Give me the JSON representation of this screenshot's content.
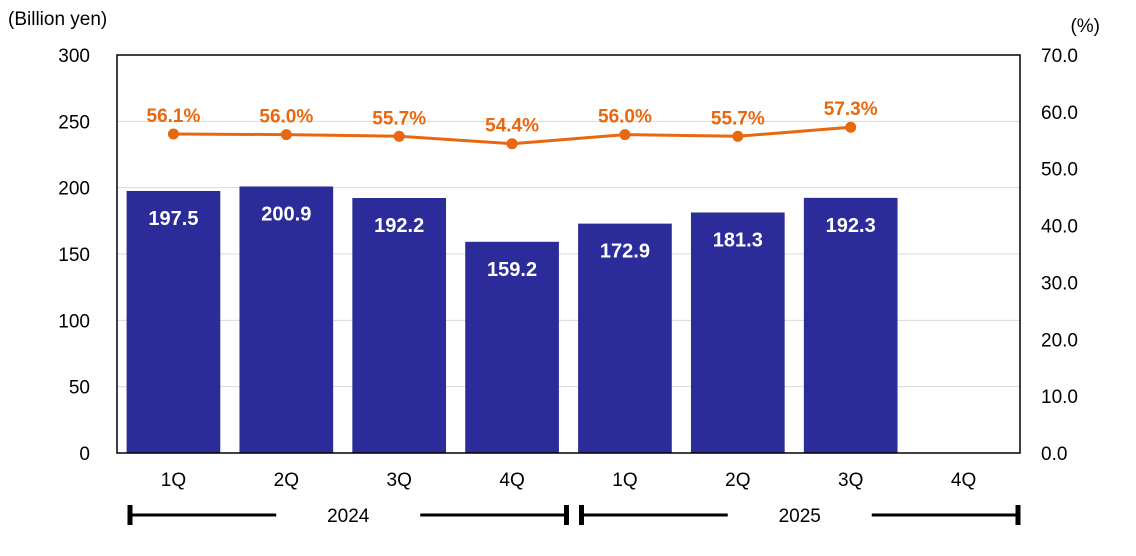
{
  "chart_data": {
    "type": "bar",
    "title": "",
    "ylabel": "(Billion yen)",
    "y2label": "(%)",
    "ylim": [
      0,
      300
    ],
    "y2lim": [
      0,
      70
    ],
    "yticks": [
      "0",
      "50",
      "100",
      "150",
      "200",
      "250",
      "300"
    ],
    "y2ticks": [
      "0.0",
      "10.0",
      "20.0",
      "30.0",
      "40.0",
      "50.0",
      "60.0",
      "70.0"
    ],
    "categories": [
      "1Q",
      "2Q",
      "3Q",
      "4Q",
      "1Q",
      "2Q",
      "3Q",
      "4Q"
    ],
    "groups": [
      {
        "label": "2024",
        "span": [
          0,
          3
        ]
      },
      {
        "label": "2025",
        "span": [
          4,
          7
        ]
      }
    ],
    "series": [
      {
        "kind": "bar",
        "axis": "left",
        "values": [
          197.5,
          200.9,
          192.2,
          159.2,
          172.9,
          181.3,
          192.3,
          null
        ],
        "labels": [
          "197.5",
          "200.9",
          "192.2",
          "159.2",
          "172.9",
          "181.3",
          "192.3",
          ""
        ]
      },
      {
        "kind": "line",
        "axis": "right",
        "values": [
          56.1,
          56.0,
          55.7,
          54.4,
          56.0,
          55.7,
          57.3,
          null
        ],
        "labels": [
          "56.1%",
          "56.0%",
          "55.7%",
          "54.4%",
          "56.0%",
          "55.7%",
          "57.3%",
          ""
        ]
      }
    ],
    "grid": true,
    "colors": {
      "bar": "#2B2B9A",
      "line": "#E8680F",
      "grid": "#D9D9D9"
    }
  }
}
